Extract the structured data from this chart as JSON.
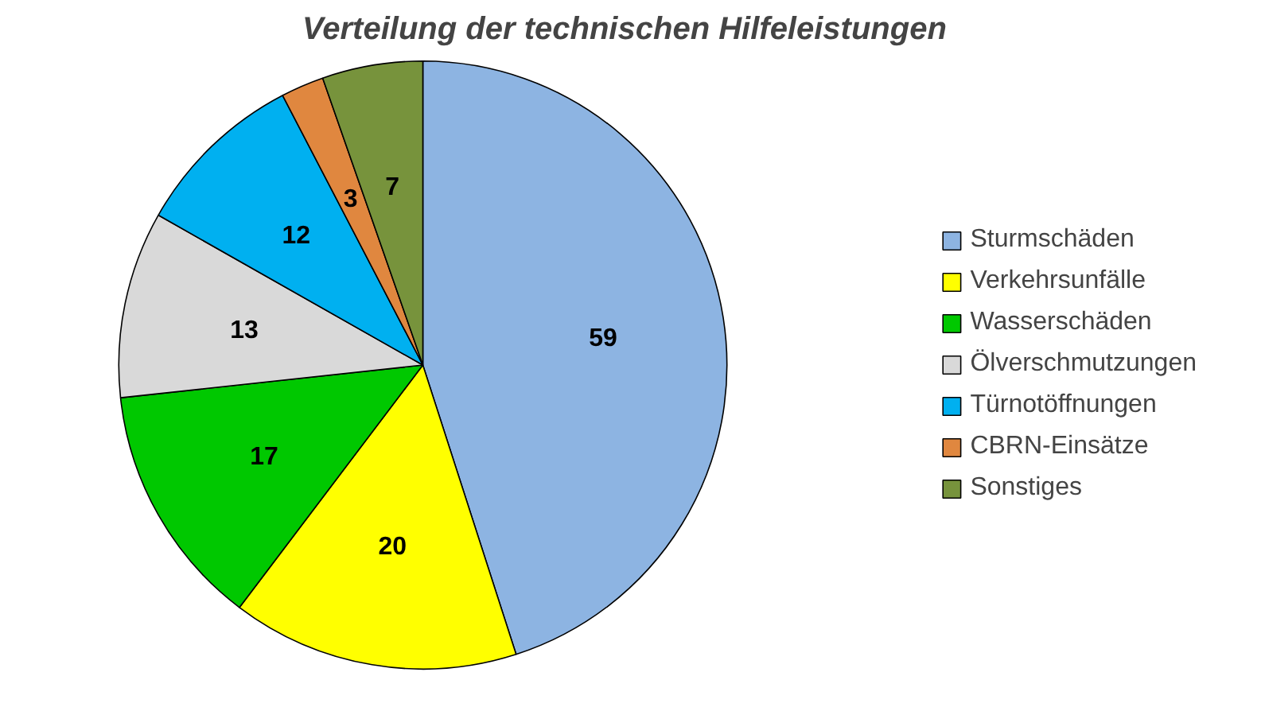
{
  "chart_data": {
    "type": "pie",
    "title": "Verteilung der technischen Hilfeleistungen",
    "categories": [
      "Sturmschäden",
      "Verkehrsunfälle",
      "Wasserschäden",
      "Ölverschmutzungen",
      "Türnotöffnungen",
      "CBRN-Einsätze",
      "Sonstiges"
    ],
    "values": [
      59,
      20,
      17,
      13,
      12,
      3,
      7
    ],
    "colors": [
      "#8db4e2",
      "#ffff00",
      "#00c800",
      "#d9d9d9",
      "#00b0f0",
      "#e0873f",
      "#77933c"
    ],
    "data_labels": true,
    "legend": "right"
  }
}
